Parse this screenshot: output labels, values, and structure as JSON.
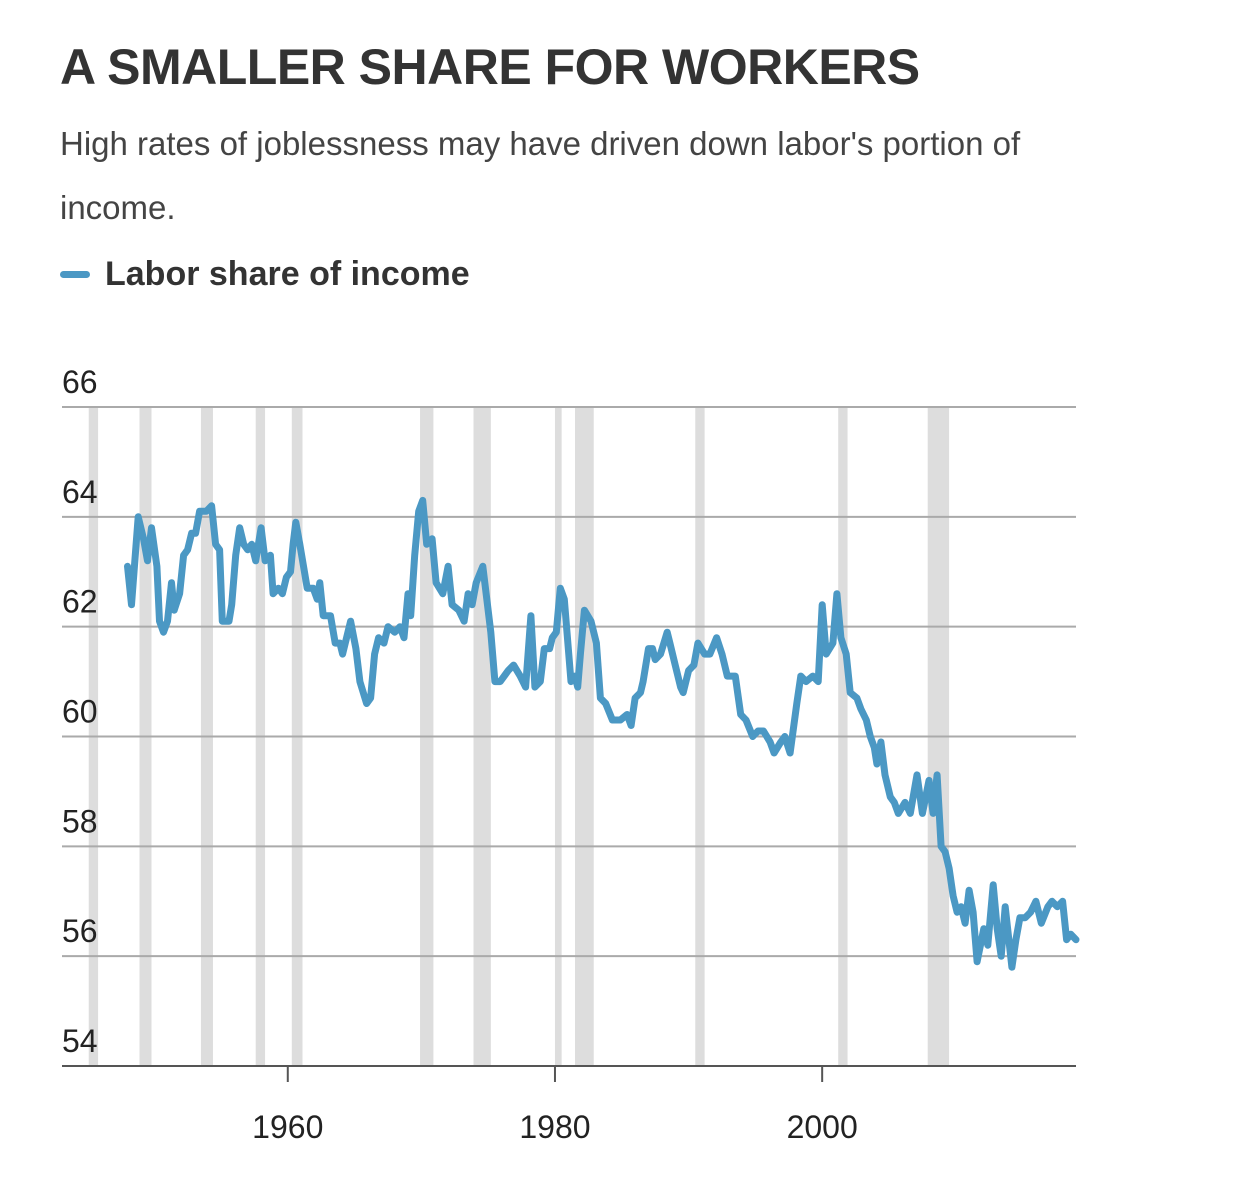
{
  "chart_data": {
    "type": "line",
    "title": "A SMALLER SHARE FOR WORKERS",
    "subtitle": "High rates of joblessness may have driven down labor's portion of income.",
    "xlim": [
      1943.1,
      2019.0
    ],
    "xticks": [
      1960,
      1980,
      2000
    ],
    "ylim": [
      54,
      66
    ],
    "yticks": [
      54,
      56,
      58,
      60,
      62,
      64,
      66
    ],
    "grid": true,
    "recession_color": "#dddddd",
    "recessions": [
      [
        1945.1,
        1945.8
      ],
      [
        1948.9,
        1949.8
      ],
      [
        1953.5,
        1954.4
      ],
      [
        1957.6,
        1958.3
      ],
      [
        1960.3,
        1961.1
      ],
      [
        1969.9,
        1970.9
      ],
      [
        1973.9,
        1975.2
      ],
      [
        1980.0,
        1980.5
      ],
      [
        1981.5,
        1982.9
      ],
      [
        1990.5,
        1991.2
      ],
      [
        2001.2,
        2001.9
      ],
      [
        2007.9,
        2009.5
      ]
    ],
    "x": [
      1948.0,
      1948.3,
      1948.8,
      1949.2,
      1949.5,
      1949.8,
      1950.2,
      1950.4,
      1950.7,
      1951.0,
      1951.3,
      1951.5,
      1951.9,
      1952.2,
      1952.5,
      1952.8,
      1953.1,
      1953.4,
      1953.9,
      1954.3,
      1954.6,
      1954.9,
      1955.1,
      1955.6,
      1955.8,
      1956.1,
      1956.4,
      1956.7,
      1957.0,
      1957.3,
      1957.6,
      1958.0,
      1958.3,
      1958.7,
      1958.9,
      1959.3,
      1959.6,
      1959.9,
      1960.2,
      1960.4,
      1960.6,
      1960.9,
      1961.45,
      1961.9,
      1962.2,
      1962.4,
      1962.65,
      1963.2,
      1963.55,
      1963.9,
      1964.1,
      1964.7,
      1965.1,
      1965.4,
      1965.9,
      1966.2,
      1966.5,
      1966.8,
      1967.2,
      1967.5,
      1968.0,
      1968.4,
      1968.7,
      1969.0,
      1969.2,
      1969.5,
      1969.8,
      1970.1,
      1970.4,
      1970.8,
      1971.1,
      1971.6,
      1972.0,
      1972.3,
      1972.8,
      1973.2,
      1973.5,
      1973.8,
      1974.1,
      1974.6,
      1974.9,
      1975.2,
      1975.5,
      1975.9,
      1976.5,
      1976.9,
      1977.4,
      1977.8,
      1978.2,
      1978.5,
      1978.9,
      1979.2,
      1979.6,
      1979.8,
      1980.1,
      1980.4,
      1980.7,
      1981.2,
      1981.5,
      1981.7,
      1981.9,
      1982.2,
      1982.7,
      1983.1,
      1983.4,
      1983.8,
      1984.3,
      1984.9,
      1985.4,
      1985.7,
      1986.0,
      1986.4,
      1986.6,
      1987.0,
      1987.3,
      1987.5,
      1987.9,
      1988.4,
      1988.6,
      1989.0,
      1989.4,
      1989.6,
      1990.0,
      1990.4,
      1990.7,
      1991.2,
      1991.6,
      1992.1,
      1992.5,
      1992.9,
      1993.5,
      1993.9,
      1994.3,
      1994.8,
      1995.2,
      1995.6,
      1996.1,
      1996.4,
      1996.9,
      1997.2,
      1997.6,
      1998.1,
      1998.4,
      1998.8,
      1999.3,
      1999.7,
      2000.0,
      2000.3,
      2000.8,
      2001.1,
      2001.4,
      2001.8,
      2002.1,
      2002.6,
      2002.9,
      2003.3,
      2003.6,
      2003.9,
      2004.1,
      2004.4,
      2004.7,
      2005.1,
      2005.4,
      2005.7,
      2006.2,
      2006.6,
      2007.1,
      2007.5,
      2008.0,
      2008.3,
      2008.6,
      2008.9,
      2009.2,
      2009.5,
      2009.8,
      2010.1,
      2010.4,
      2010.7,
      2011.0,
      2011.3,
      2011.6,
      2012.1,
      2012.4,
      2012.8,
      2013.1,
      2013.4,
      2013.7,
      2014.2,
      2014.5,
      2014.8,
      2015.2,
      2015.6,
      2016.0,
      2016.4,
      2016.9,
      2017.2,
      2017.6,
      2018.0,
      2018.3,
      2018.6,
      2019.0
    ],
    "series": [
      {
        "name": "Labor share of income",
        "color": "#4b98c4",
        "values": [
          63.1,
          62.4,
          64.0,
          63.6,
          63.2,
          63.8,
          63.1,
          62.1,
          61.9,
          62.1,
          62.8,
          62.3,
          62.6,
          63.3,
          63.4,
          63.7,
          63.7,
          64.1,
          64.1,
          64.2,
          63.5,
          63.4,
          62.1,
          62.1,
          62.4,
          63.3,
          63.8,
          63.5,
          63.4,
          63.5,
          63.2,
          63.8,
          63.2,
          63.3,
          62.6,
          62.7,
          62.6,
          62.9,
          63.0,
          63.5,
          63.9,
          63.5,
          62.7,
          62.7,
          62.5,
          62.8,
          62.2,
          62.2,
          61.7,
          61.7,
          61.5,
          62.1,
          61.6,
          61.0,
          60.6,
          60.7,
          61.5,
          61.8,
          61.7,
          62.0,
          61.9,
          62.0,
          61.8,
          62.6,
          62.2,
          63.3,
          64.1,
          64.3,
          63.5,
          63.6,
          62.8,
          62.6,
          63.1,
          62.4,
          62.3,
          62.1,
          62.6,
          62.4,
          62.8,
          63.1,
          62.5,
          61.9,
          61.0,
          61.0,
          61.2,
          61.3,
          61.1,
          60.9,
          62.2,
          60.9,
          61.0,
          61.6,
          61.6,
          61.8,
          61.9,
          62.7,
          62.5,
          61.0,
          61.1,
          60.9,
          61.5,
          62.3,
          62.1,
          61.7,
          60.7,
          60.6,
          60.3,
          60.3,
          60.4,
          60.2,
          60.7,
          60.8,
          61.0,
          61.6,
          61.6,
          61.4,
          61.5,
          61.9,
          61.7,
          61.3,
          60.9,
          60.8,
          61.2,
          61.3,
          61.7,
          61.5,
          61.5,
          61.8,
          61.5,
          61.1,
          61.1,
          60.4,
          60.3,
          60.0,
          60.1,
          60.1,
          59.9,
          59.7,
          59.9,
          60.0,
          59.7,
          60.6,
          61.1,
          61.0,
          61.1,
          61.0,
          62.4,
          61.5,
          61.7,
          62.6,
          61.8,
          61.5,
          60.8,
          60.7,
          60.5,
          60.3,
          60.0,
          59.8,
          59.5,
          59.9,
          59.3,
          58.9,
          58.8,
          58.6,
          58.8,
          58.6,
          59.3,
          58.6,
          59.2,
          58.6,
          59.3,
          58.0,
          57.9,
          57.6,
          57.1,
          56.8,
          56.9,
          56.6,
          57.2,
          56.8,
          55.9,
          56.5,
          56.2,
          57.3,
          56.5,
          56.0,
          56.9,
          55.8,
          56.3,
          56.7,
          56.7,
          56.8,
          57.0,
          56.6,
          56.9,
          57.0,
          56.9,
          57.0,
          56.3,
          56.4,
          56.3
        ]
      }
    ]
  }
}
